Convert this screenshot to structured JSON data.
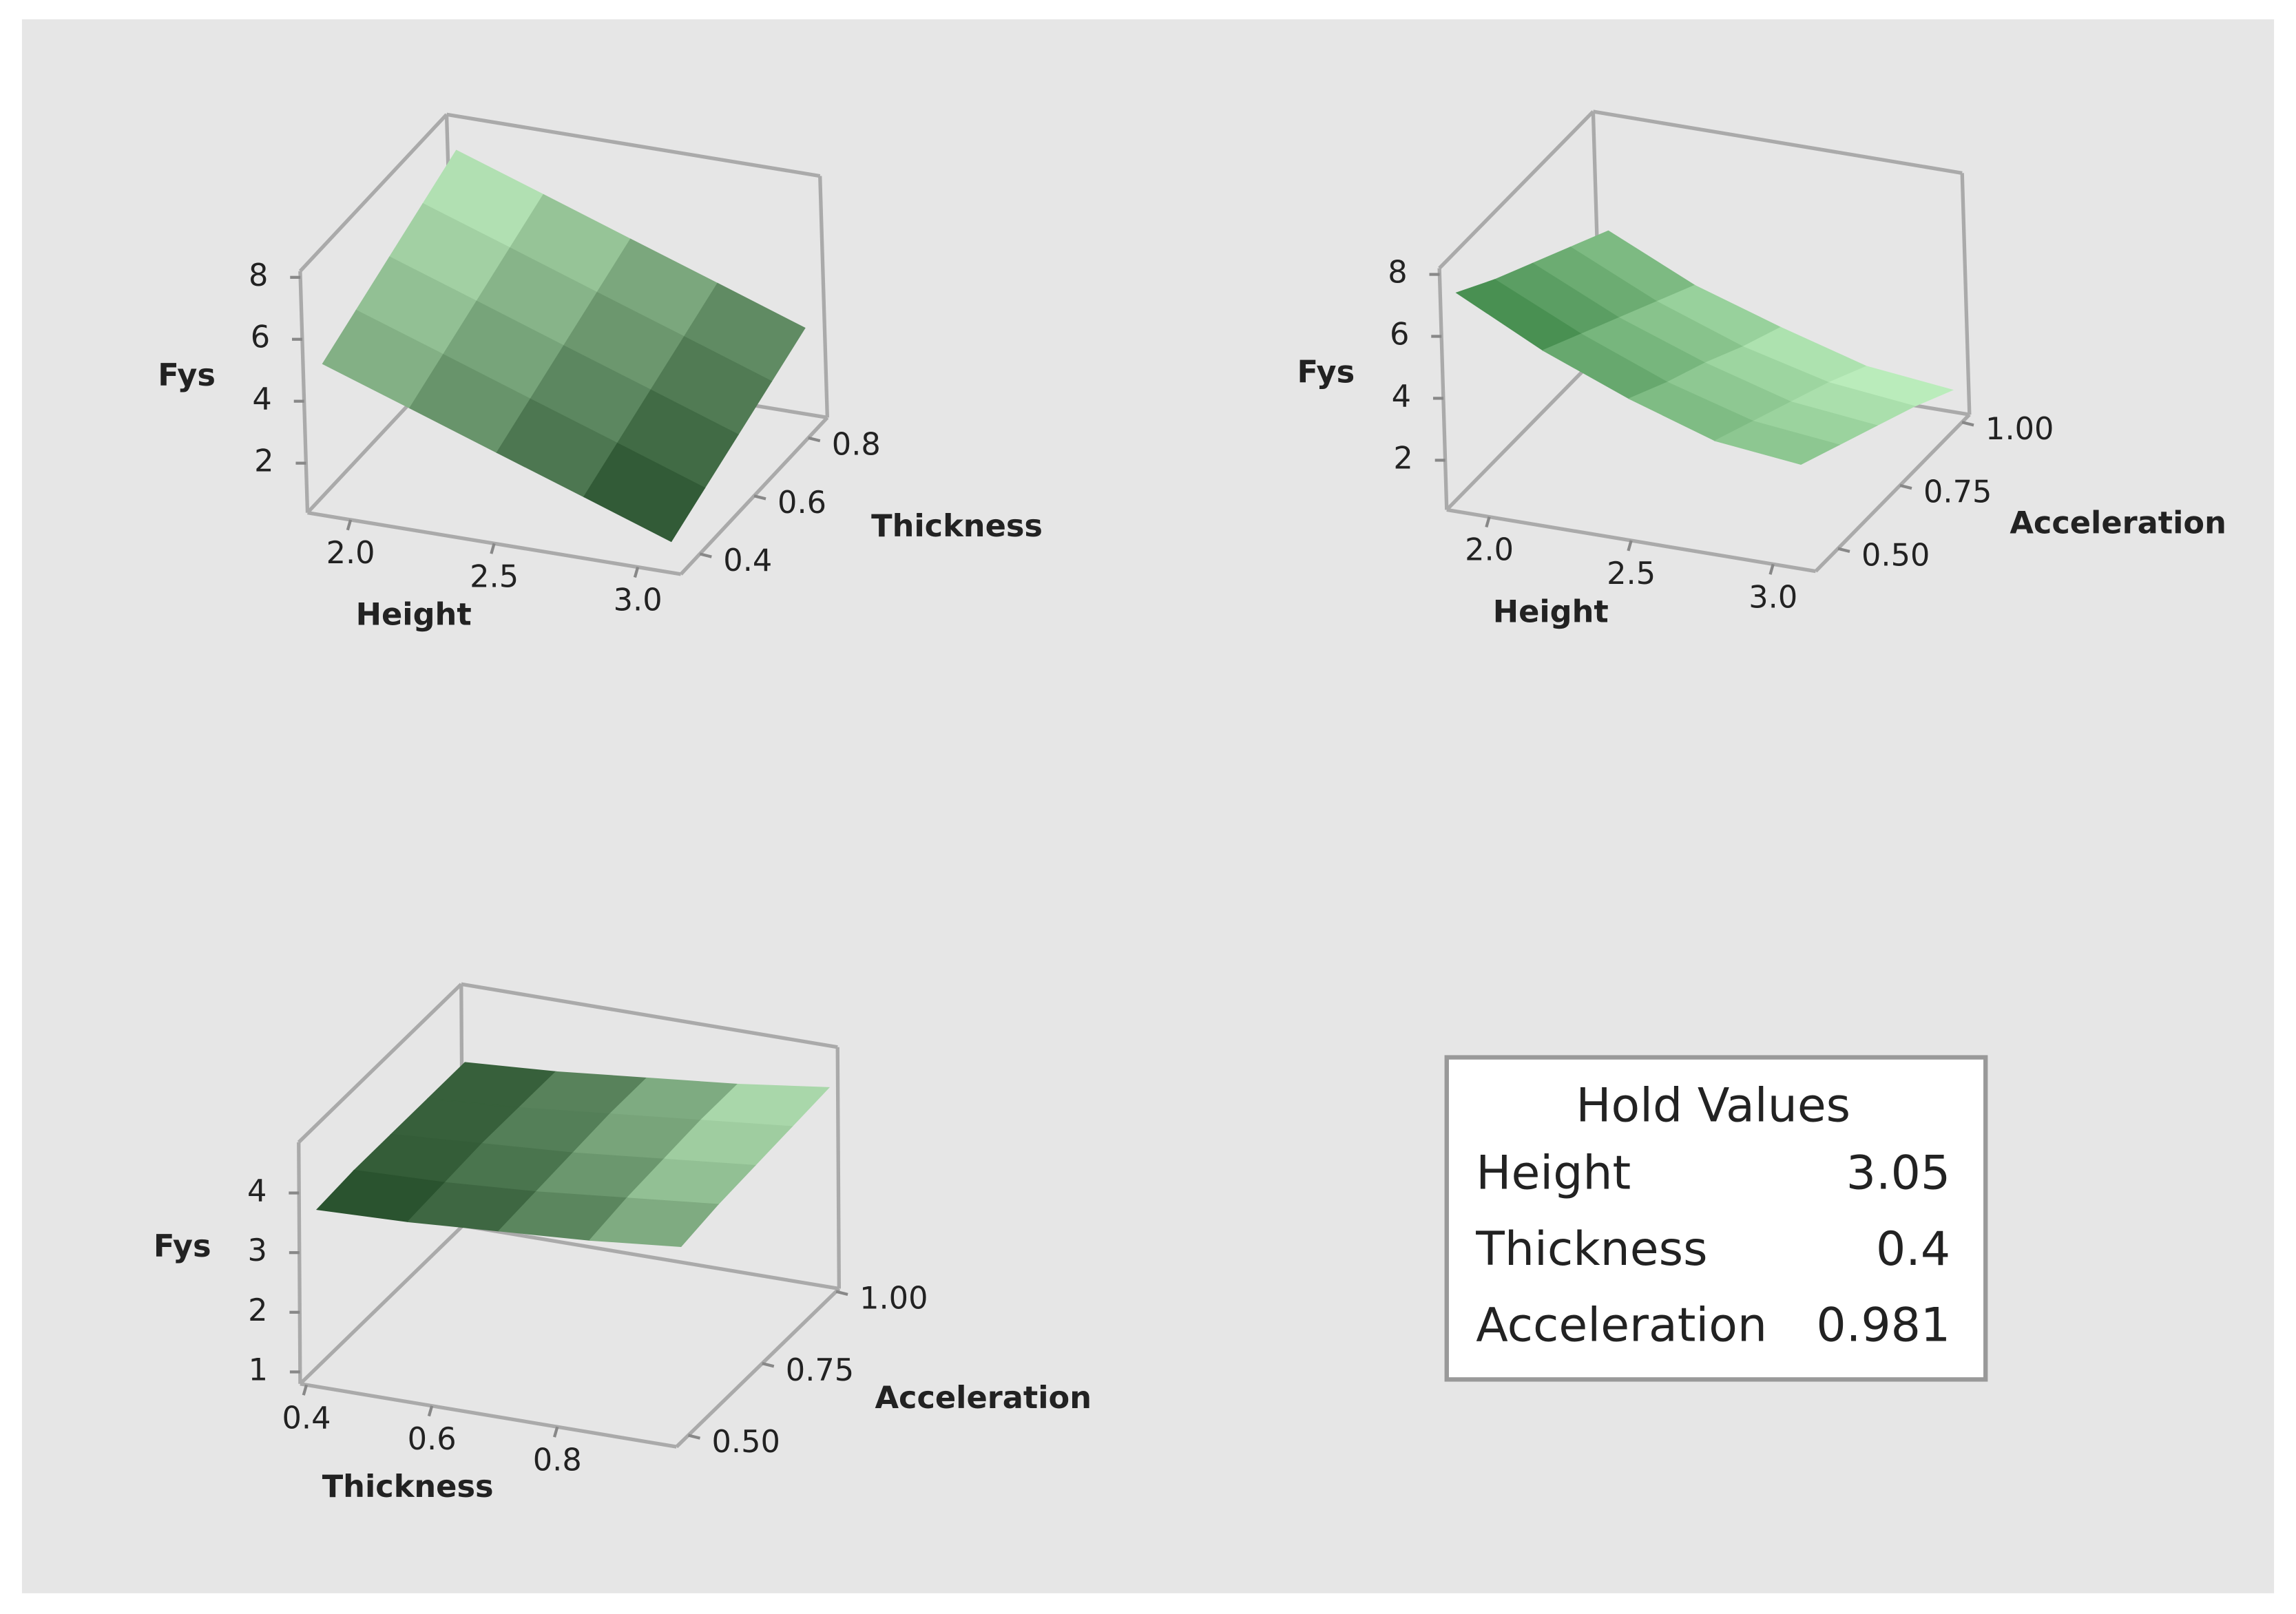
{
  "chart_data": [
    {
      "type": "surface",
      "x_label": "Height",
      "y_label": "Thickness",
      "z_label": "Fys",
      "x": [
        1.9,
        2.2,
        2.5,
        2.8,
        3.1
      ],
      "y": [
        0.35,
        0.475,
        0.6,
        0.725,
        0.85
      ],
      "z": [
        [
          5.1,
          4.13,
          3.15,
          2.18,
          1.2
        ],
        [
          5.65,
          4.68,
          3.7,
          2.73,
          1.75
        ],
        [
          6.2,
          5.23,
          4.25,
          3.28,
          2.3
        ],
        [
          6.75,
          5.78,
          4.8,
          3.83,
          2.85
        ],
        [
          7.3,
          6.33,
          5.35,
          4.38,
          3.4
        ]
      ],
      "xlim": [
        1.85,
        3.15
      ],
      "ylim": [
        0.33,
        0.87
      ],
      "zlim": [
        0.4,
        8.2
      ],
      "xticks": [
        {
          "value": 2,
          "label": "2.0"
        },
        2.5,
        {
          "value": 3,
          "label": "3.0"
        }
      ],
      "yticks": [
        0.4,
        0.6,
        0.8
      ],
      "zticks": [
        2,
        4,
        6,
        8
      ],
      "colors": [
        "#1d4522",
        "#c6f6c6"
      ]
    },
    {
      "type": "surface",
      "x_label": "Height",
      "y_label": "Acceleration",
      "z_label": "Fys",
      "x": [
        1.9,
        2.2,
        2.5,
        2.8,
        3.1
      ],
      "y": [
        0.42,
        0.57,
        0.72,
        0.87,
        1.02
      ],
      "z": [
        [
          7.4,
          6.0,
          4.9,
          4.0,
          3.7
        ],
        [
          6.6,
          5.3,
          4.2,
          3.4,
          3.1
        ],
        [
          5.9,
          4.6,
          3.6,
          2.8,
          2.5
        ],
        [
          5.2,
          3.9,
          2.9,
          2.2,
          1.9
        ],
        [
          4.5,
          3.2,
          2.3,
          1.5,
          1.2
        ]
      ],
      "xlim": [
        1.85,
        3.15
      ],
      "ylim": [
        0.41,
        1.03
      ],
      "zlim": [
        0.4,
        8.2
      ],
      "xticks": [
        {
          "value": 2,
          "label": "2.0"
        },
        2.5,
        {
          "value": 3,
          "label": "3.0"
        }
      ],
      "yticks": [
        {
          "value": 0.5,
          "label": "0.50"
        },
        0.75,
        {
          "value": 1,
          "label": "1.00"
        }
      ],
      "zticks": [
        2,
        4,
        6,
        8
      ],
      "colors": [
        "#c6f6c6",
        "#2f7a3a"
      ]
    },
    {
      "type": "surface",
      "x_label": "Thickness",
      "y_label": "Acceleration",
      "z_label": "Fys",
      "x": [
        0.4,
        0.545,
        0.69,
        0.835,
        0.98
      ],
      "y": [
        0.5,
        0.625,
        0.75,
        0.875,
        1.0
      ],
      "z": [
        [
          3.55,
          3.6,
          3.7,
          3.8,
          3.95
        ],
        [
          3.6,
          3.65,
          3.75,
          3.9,
          4.05
        ],
        [
          3.6,
          3.7,
          3.8,
          3.95,
          4.1
        ],
        [
          3.6,
          3.7,
          3.85,
          4.0,
          4.15
        ],
        [
          3.6,
          3.7,
          3.85,
          4.0,
          4.2
        ]
      ],
      "xlim": [
        0.39,
        0.99
      ],
      "ylim": [
        0.46,
        1.01
      ],
      "zlim": [
        0.8,
        4.85
      ],
      "xticks": [
        0.4,
        0.6,
        0.8
      ],
      "yticks": [
        {
          "value": 0.5,
          "label": "0.50"
        },
        0.75,
        {
          "value": 1,
          "label": "1.00"
        }
      ],
      "zticks": [
        1,
        2,
        3,
        4
      ],
      "colors": [
        "#1d4522",
        "#c6f6c6"
      ]
    }
  ],
  "hold_values": {
    "title": "Hold Values",
    "rows": [
      {
        "name": "Height",
        "value": 3.05
      },
      {
        "name": "Thickness",
        "value": 0.4
      },
      {
        "name": "Acceleration",
        "value": 0.981
      }
    ]
  }
}
